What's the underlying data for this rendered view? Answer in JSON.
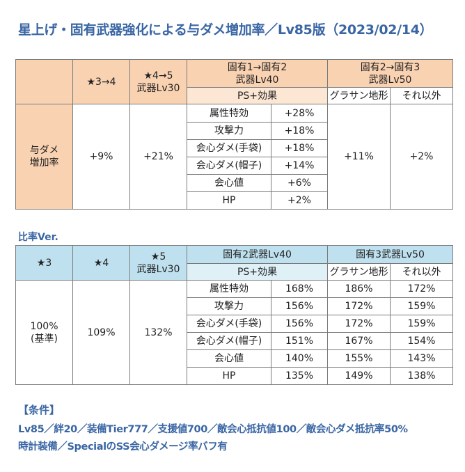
{
  "title": "星上げ・固有武器強化による与ダメ増加率／Lv85版（2023/02/14）",
  "table1": {
    "col_star34": "★3→4",
    "col_star45_line1": "★4→5",
    "col_star45_line2": "武器Lv30",
    "col_unique12_line1": "固有1→固有2",
    "col_unique12_line2": "武器Lv40",
    "col_unique23_line1": "固有2→固有3",
    "col_unique23_line2": "武器Lv50",
    "ps_effect": "PS+効果",
    "grassan": "グラサン地形",
    "other": "それ以外",
    "row_label_line1": "与ダメ",
    "row_label_line2": "増加率",
    "star34_value": "+9%",
    "star45_value": "+21%",
    "grassan_value": "+11%",
    "other_value": "+2%",
    "ps_rows": [
      {
        "label": "属性特効",
        "value": "+28%"
      },
      {
        "label": "攻撃力",
        "value": "+18%"
      },
      {
        "label": "会心ダメ(手袋)",
        "value": "+18%"
      },
      {
        "label": "会心ダメ(帽子)",
        "value": "+14%"
      },
      {
        "label": "会心値",
        "value": "+6%"
      },
      {
        "label": "HP",
        "value": "+2%"
      }
    ]
  },
  "subtitle": "比率Ver.",
  "table2": {
    "col_star3": "★3",
    "col_star4": "★4",
    "col_star5_line1": "★5",
    "col_star5_line2": "武器Lv30",
    "col_unique2": "固有2武器Lv40",
    "col_unique3": "固有3武器Lv50",
    "ps_effect": "PS+効果",
    "grassan": "グラサン地形",
    "other": "それ以外",
    "star3_value_line1": "100%",
    "star3_value_line2": "(基準)",
    "star4_value": "109%",
    "star5_value": "132%",
    "rows": [
      {
        "label": "属性特効",
        "u2": "168%",
        "grassan": "186%",
        "other": "172%"
      },
      {
        "label": "攻撃力",
        "u2": "156%",
        "grassan": "172%",
        "other": "159%"
      },
      {
        "label": "会心ダメ(手袋)",
        "u2": "156%",
        "grassan": "172%",
        "other": "159%"
      },
      {
        "label": "会心ダメ(帽子)",
        "u2": "151%",
        "grassan": "167%",
        "other": "154%"
      },
      {
        "label": "会心値",
        "u2": "140%",
        "grassan": "155%",
        "other": "143%"
      },
      {
        "label": "HP",
        "u2": "135%",
        "grassan": "149%",
        "other": "138%"
      }
    ]
  },
  "conditions": {
    "title": "【条件】",
    "line1": "Lv85／絆20／装備Tier777／支援値700／敵会心抵抗値100／敵会心ダメ抵抗率50%",
    "line2": "時計装備／SpecialのSS会心ダメージ率バフ有"
  }
}
